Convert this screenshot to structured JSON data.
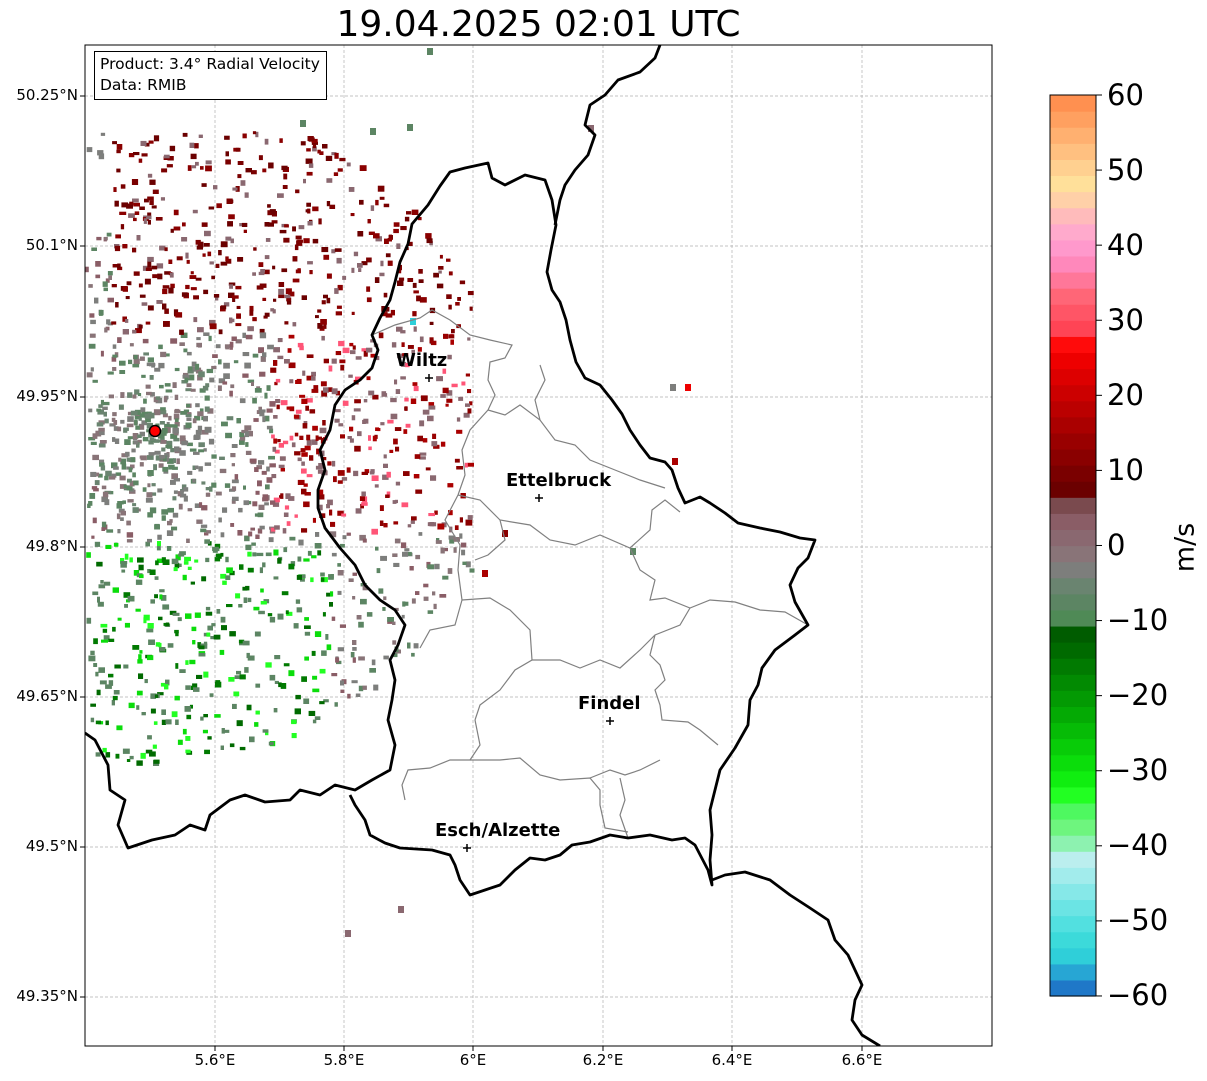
{
  "title": "19.04.2025 02:01 UTC",
  "info": {
    "product": "Product: 3.4° Radial Velocity",
    "source": "Data: RMIB"
  },
  "lat_labels": [
    "50.25°N",
    "50.1°N",
    "49.95°N",
    "49.8°N",
    "49.65°N",
    "49.5°N",
    "49.35°N"
  ],
  "lon_labels": [
    "5.6°E",
    "5.8°E",
    "6°E",
    "6.2°E",
    "6.4°E",
    "6.6°E"
  ],
  "cities": [
    {
      "name": "Wiltz"
    },
    {
      "name": "Ettelbruck"
    },
    {
      "name": "Findel"
    },
    {
      "name": "Esch/Alzette"
    }
  ],
  "colorbar": {
    "unit": "m/s",
    "min": -60,
    "max": 60,
    "ticks": [
      "60",
      "50",
      "40",
      "30",
      "20",
      "10",
      "0",
      "−10",
      "−20",
      "−30",
      "−40",
      "−50",
      "−60"
    ]
  },
  "colors": {
    "radar_site": "#ff0000",
    "border": "#000000",
    "admin": "#808080"
  },
  "icons": [
    "radar-site-marker",
    "city-marker"
  ]
}
